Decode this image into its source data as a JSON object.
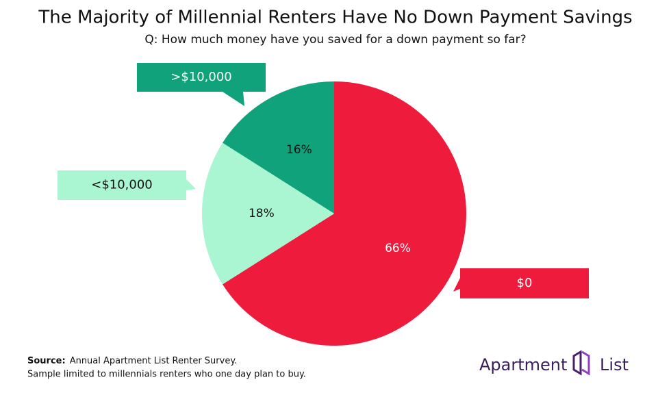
{
  "chart_data": {
    "type": "pie",
    "title": "The Majority of Millennial Renters Have No Down Payment Savings",
    "subtitle": "Q: How much money have you saved for a down payment so far?",
    "categories": [
      "$0",
      "<$10,000",
      ">$10,000"
    ],
    "values": [
      66,
      18,
      16
    ],
    "value_labels": [
      "66%",
      "18%",
      "16%"
    ],
    "colors": [
      "#ef1b3d",
      "#abf6d2",
      "#10a27a"
    ]
  },
  "footer": {
    "source_label": "Source:",
    "source_text": "Annual Apartment List Renter Survey.",
    "note": "Sample limited to millennials renters who one day plan to buy.",
    "brand": "Apartment List"
  }
}
